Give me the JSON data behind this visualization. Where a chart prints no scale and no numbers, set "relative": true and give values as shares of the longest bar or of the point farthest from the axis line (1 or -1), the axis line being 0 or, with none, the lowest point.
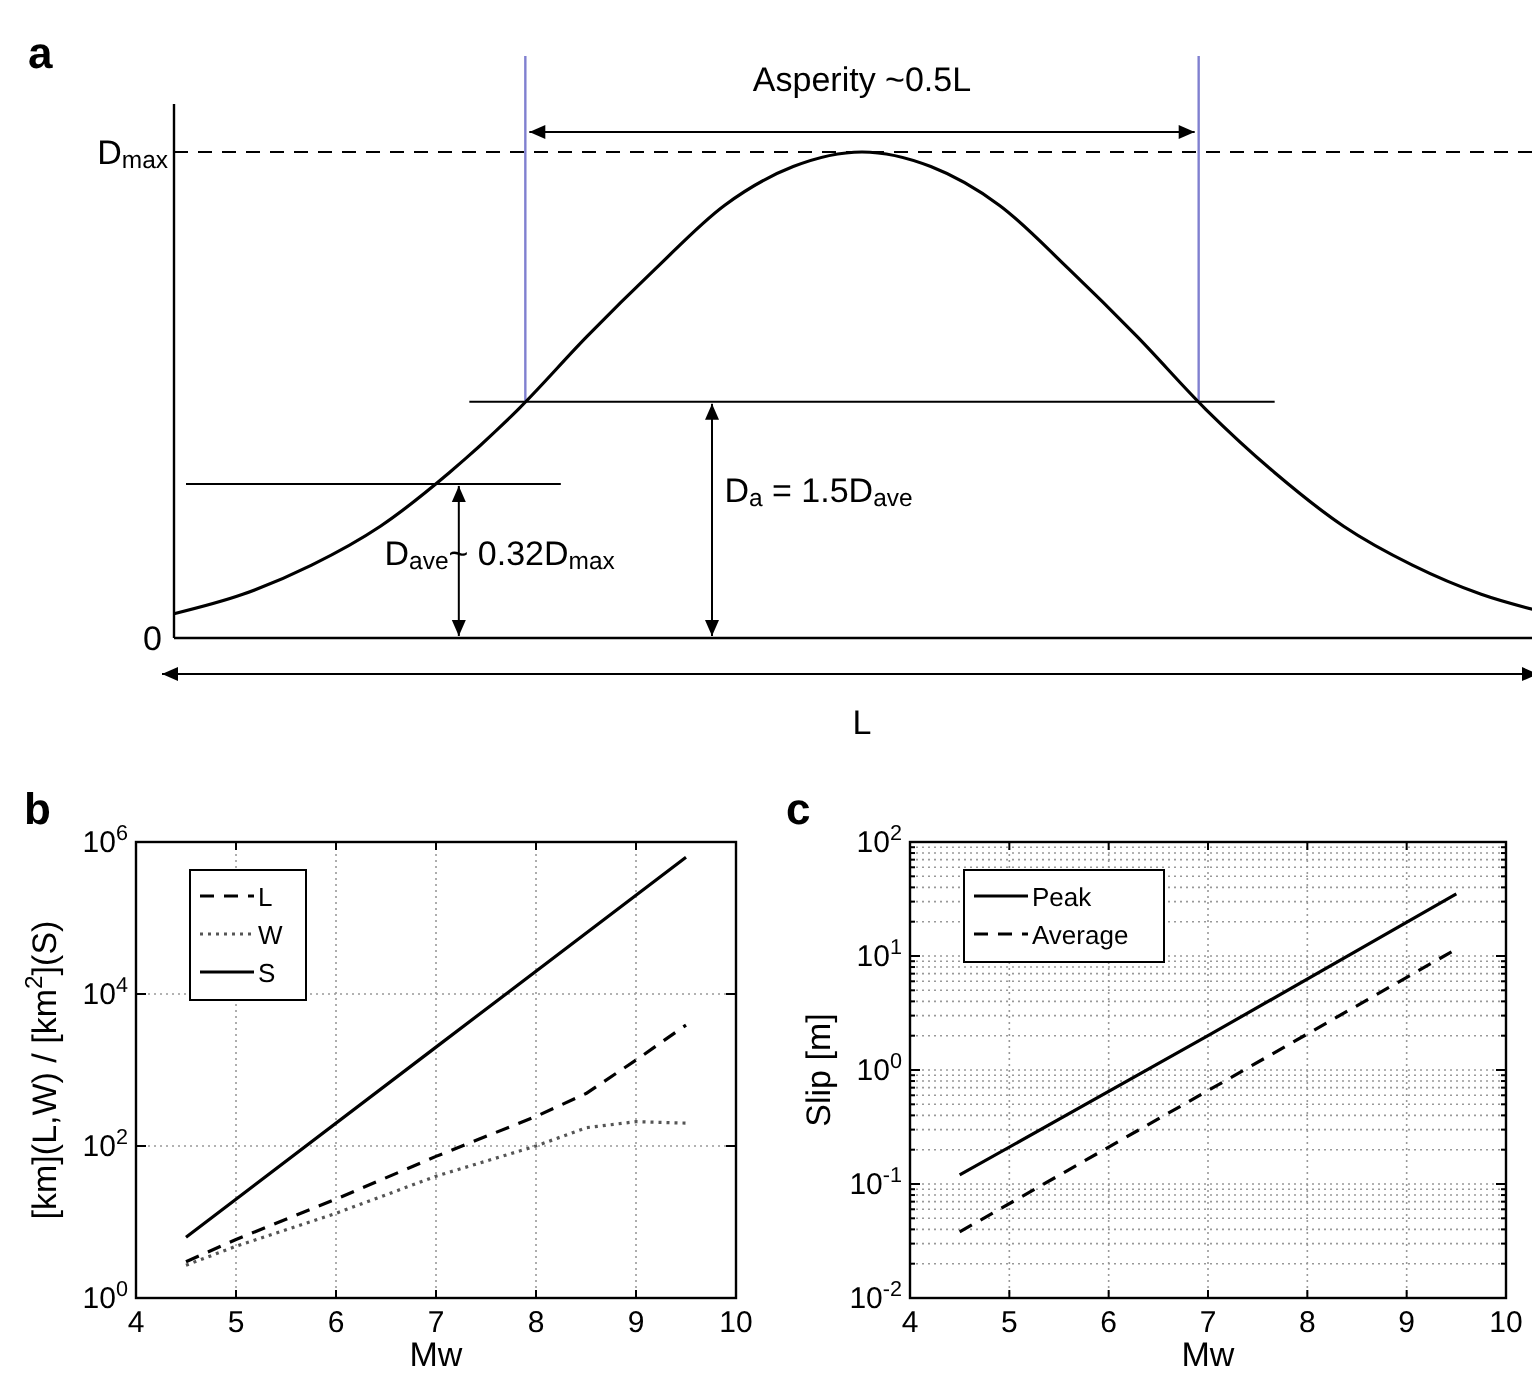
{
  "chart_data": [
    {
      "type": "line",
      "title": "a",
      "relative": true,
      "categories": [
        null,
        null,
        null,
        null,
        null,
        null,
        null,
        null,
        null,
        null,
        null,
        null,
        null,
        null,
        null,
        null,
        null,
        null,
        null,
        null,
        null
      ],
      "series": [
        {
          "color": "#000000",
          "line_style": "solid",
          "values": [
            0.05,
            0.09,
            0.15,
            0.23,
            0.34,
            0.47,
            0.62,
            0.76,
            0.89,
            0.97,
            1,
            0.97,
            0.89,
            0.76,
            0.62,
            0.47,
            0.34,
            0.23,
            0.15,
            0.09,
            0.05
          ]
        }
      ],
      "ref_lines": [
        {
          "axis": "y",
          "value": 1,
          "line_style": "dashed",
          "color": "#000000"
        },
        {
          "axis": "y",
          "value": 0.486,
          "line_style": "solid",
          "color": "#000000"
        },
        {
          "axis": "y",
          "value": 0.317,
          "line_style": "solid",
          "color": "#000000"
        }
      ],
      "annotations": [
        "Asperity ~0.5L",
        "D$_{a}$ = 1.5D$_{ave}$",
        "D$_{ave}$~ 0.32D$_{max}$",
        "L",
        "0",
        "D$_{max}$"
      ]
    },
    {
      "type": "line",
      "title": "b",
      "xlabel": "Mw",
      "ylabel": "[km](L,W) / [km$^{2}$](S)",
      "log": "y",
      "grid": true,
      "legend": "top left",
      "xlim": [
        4,
        10
      ],
      "xticks": [
        4,
        5,
        6,
        7,
        8,
        9,
        10
      ],
      "ylim": [
        1,
        1000000
      ],
      "yticks": [
        {
          "value": 1,
          "label": "10$^{0}$"
        },
        {
          "value": 100,
          "label": "10$^{2}$"
        },
        {
          "value": 10000,
          "label": "10$^{4}$"
        },
        {
          "value": 1000000,
          "label": "10$^{6}$"
        }
      ],
      "series": [
        {
          "name": "L",
          "color": "#000000",
          "line_style": "dashed",
          "x": [
            4.5,
            5,
            6,
            7,
            8,
            8.5,
            9,
            9.5
          ],
          "values": [
            3,
            5.9,
            20,
            73,
            245,
            490,
            1350,
            3900
          ]
        },
        {
          "name": "W",
          "color": "#555555",
          "line_style": "dotted",
          "x": [
            4.5,
            5,
            6,
            7,
            8,
            8.5,
            9,
            9.5
          ],
          "values": [
            2.7,
            4.8,
            13,
            40,
            100,
            174,
            209,
            200
          ]
        },
        {
          "name": "S",
          "color": "#000000",
          "line_style": "solid",
          "x": [
            4.5,
            7,
            9.5
          ],
          "values": [
            6.3,
            2000,
            630000
          ]
        }
      ]
    },
    {
      "type": "line",
      "title": "c",
      "xlabel": "Mw",
      "ylabel": "Slip [m]",
      "log": "y",
      "grid": true,
      "legend": "top left",
      "xlim": [
        4,
        10
      ],
      "xticks": [
        4,
        5,
        6,
        7,
        8,
        9,
        10
      ],
      "ylim": [
        0.01,
        100
      ],
      "yticks": [
        {
          "value": 0.01,
          "label": "10$^{-2}$"
        },
        {
          "value": 0.02,
          "label": null
        },
        {
          "value": 0.03,
          "label": null
        },
        {
          "value": 0.04,
          "label": null
        },
        {
          "value": 0.05,
          "label": null
        },
        {
          "value": 0.06,
          "label": null
        },
        {
          "value": 0.07,
          "label": null
        },
        {
          "value": 0.08,
          "label": null
        },
        {
          "value": 0.09,
          "label": null
        },
        {
          "value": 0.1,
          "label": "10$^{-1}$"
        },
        {
          "value": 0.2,
          "label": null
        },
        {
          "value": 0.3,
          "label": null
        },
        {
          "value": 0.4,
          "label": null
        },
        {
          "value": 0.5,
          "label": null
        },
        {
          "value": 0.6,
          "label": null
        },
        {
          "value": 0.7,
          "label": null
        },
        {
          "value": 0.8,
          "label": null
        },
        {
          "value": 0.9,
          "label": null
        },
        {
          "value": 1,
          "label": "10$^{0}$"
        },
        {
          "value": 2,
          "label": null
        },
        {
          "value": 3,
          "label": null
        },
        {
          "value": 4,
          "label": null
        },
        {
          "value": 5,
          "label": null
        },
        {
          "value": 6,
          "label": null
        },
        {
          "value": 7,
          "label": null
        },
        {
          "value": 8,
          "label": null
        },
        {
          "value": 9,
          "label": null
        },
        {
          "value": 10,
          "label": "10$^{1}$"
        },
        {
          "value": 20,
          "label": null
        },
        {
          "value": 30,
          "label": null
        },
        {
          "value": 40,
          "label": null
        },
        {
          "value": 50,
          "label": null
        },
        {
          "value": 60,
          "label": null
        },
        {
          "value": 70,
          "label": null
        },
        {
          "value": 80,
          "label": null
        },
        {
          "value": 90,
          "label": null
        },
        {
          "value": 100,
          "label": "10$^{2}$"
        }
      ],
      "series": [
        {
          "name": "Peak",
          "color": "#000000",
          "line_style": "solid",
          "x": [
            4.5,
            7,
            9.5
          ],
          "values": [
            0.12,
            2,
            35
          ]
        },
        {
          "name": "Average",
          "color": "#000000",
          "line_style": "dashed",
          "x": [
            4.5,
            7,
            9.5
          ],
          "values": [
            0.038,
            0.66,
            11.5
          ]
        }
      ]
    }
  ]
}
